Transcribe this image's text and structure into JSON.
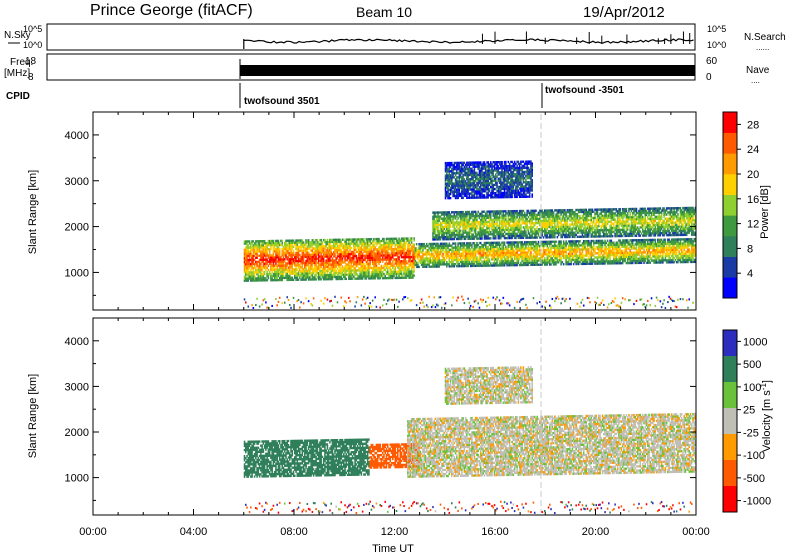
{
  "header": {
    "station": "Prince George (fitACF)",
    "beam": "Beam 10",
    "date": "19/Apr/2012"
  },
  "colors": {
    "power": [
      "#0000ff",
      "#1a3aa6",
      "#2f7f5a",
      "#3f9a3f",
      "#8fcf2f",
      "#ffd000",
      "#ff9a00",
      "#ff5a00",
      "#ff0000"
    ],
    "velocity": [
      "#2c2cbf",
      "#2f7f5a",
      "#69c23a",
      "#bfbfb6",
      "#ff9a00",
      "#ff5a00",
      "#ff0000"
    ],
    "ground_scatter": "#bfbfb6",
    "missing": "#ffffff"
  },
  "top_panels": {
    "nsky": {
      "left_label": "N.Sky",
      "right_label": "N.Search",
      "left_ticks": [
        "10^5",
        "10^0"
      ],
      "right_ticks": [
        "10^5",
        "10^0"
      ]
    },
    "freq": {
      "left_label_line1": "Freq.",
      "left_label_line2": "[MHz]",
      "right_label": "Nave",
      "left_ticks": [
        "18",
        "8"
      ],
      "right_ticks": [
        "60",
        "0"
      ]
    },
    "cpid": {
      "label": "CPID",
      "segments": [
        {
          "start_hour": 6.0,
          "name": "twofsound 3501"
        },
        {
          "start_hour": 18.0,
          "name": "twofsound -3501"
        }
      ]
    }
  },
  "chart_data": [
    {
      "type": "heatmap",
      "name": "power",
      "xlabel": "",
      "ylabel": "Slant Range [km]",
      "xlim": [
        0,
        24
      ],
      "ylim": [
        180,
        4500
      ],
      "yticks": [
        1000,
        2000,
        3000,
        4000
      ],
      "colorbar": {
        "label": "Power [dB]",
        "ticks": [
          4,
          8,
          12,
          16,
          20,
          24,
          28
        ],
        "range": [
          0,
          30
        ]
      },
      "data_start_hour": 6.0,
      "echo_bands": [
        {
          "t_start": 6.0,
          "t_end": 12.8,
          "range_low": 800,
          "range_high": 1700,
          "peak_db": 28
        },
        {
          "t_start": 12.8,
          "t_end": 24.0,
          "range_low": 1100,
          "range_high": 1600,
          "peak_db": 22
        },
        {
          "t_start": 13.5,
          "t_end": 24.0,
          "range_low": 1700,
          "range_high": 2300,
          "peak_db": 18
        },
        {
          "t_start": 14.0,
          "t_end": 17.5,
          "range_low": 2600,
          "range_high": 3400,
          "peak_db": 8
        }
      ]
    },
    {
      "type": "heatmap",
      "name": "velocity",
      "xlabel": "Time UT",
      "ylabel": "Slant Range [km]",
      "xlim": [
        0,
        24
      ],
      "ylim": [
        180,
        4500
      ],
      "xticks": [
        "00:00",
        "04:00",
        "08:00",
        "12:00",
        "16:00",
        "20:00",
        "00:00"
      ],
      "yticks": [
        1000,
        2000,
        3000,
        4000
      ],
      "colorbar": {
        "label": "Velocity [m s^-1]",
        "ticks": [
          1000,
          500,
          100,
          25,
          -25,
          -100,
          -500,
          -1000
        ]
      },
      "data_start_hour": 6.0,
      "echo_bands": [
        {
          "t_start": 6.0,
          "t_end": 11.0,
          "range_low": 1000,
          "range_high": 1800,
          "velocity": 200
        },
        {
          "t_start": 11.0,
          "t_end": 13.0,
          "range_low": 1200,
          "range_high": 1700,
          "velocity": -150
        },
        {
          "t_start": 12.5,
          "t_end": 24.0,
          "range_low": 1000,
          "range_high": 2300,
          "velocity": 0
        },
        {
          "t_start": 14.0,
          "t_end": 17.5,
          "range_low": 2600,
          "range_high": 3400,
          "velocity": 0
        }
      ]
    }
  ],
  "labels": {
    "slant_range": "Slant Range [km]",
    "power": "Power [dB]",
    "velocity": "Velocity [m s",
    "velocity_sup": "-1",
    "velocity_end": "]",
    "time": "Time UT",
    "dots": "......",
    "dots_short": "...."
  }
}
